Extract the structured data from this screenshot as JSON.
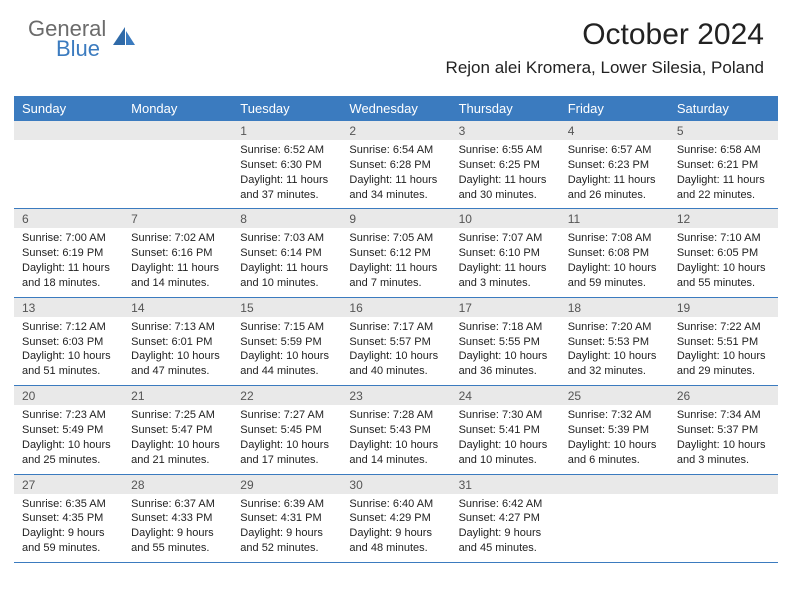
{
  "logo": {
    "text1": "General",
    "text2": "Blue"
  },
  "title": "October 2024",
  "location": "Rejon alei Kromera, Lower Silesia, Poland",
  "colors": {
    "header_bg": "#3b7bbf",
    "header_text": "#ffffff",
    "daynum_bg": "#e9e9e9",
    "daynum_text": "#555555",
    "body_text": "#222222",
    "logo_gray": "#6b6b6b",
    "logo_blue": "#3b7bbf",
    "border": "#3b7bbf",
    "page_bg": "#ffffff"
  },
  "day_labels": [
    "Sunday",
    "Monday",
    "Tuesday",
    "Wednesday",
    "Thursday",
    "Friday",
    "Saturday"
  ],
  "weeks": [
    [
      {
        "n": "",
        "sr": "",
        "ss": "",
        "dl": ""
      },
      {
        "n": "",
        "sr": "",
        "ss": "",
        "dl": ""
      },
      {
        "n": "1",
        "sr": "Sunrise: 6:52 AM",
        "ss": "Sunset: 6:30 PM",
        "dl": "Daylight: 11 hours and 37 minutes."
      },
      {
        "n": "2",
        "sr": "Sunrise: 6:54 AM",
        "ss": "Sunset: 6:28 PM",
        "dl": "Daylight: 11 hours and 34 minutes."
      },
      {
        "n": "3",
        "sr": "Sunrise: 6:55 AM",
        "ss": "Sunset: 6:25 PM",
        "dl": "Daylight: 11 hours and 30 minutes."
      },
      {
        "n": "4",
        "sr": "Sunrise: 6:57 AM",
        "ss": "Sunset: 6:23 PM",
        "dl": "Daylight: 11 hours and 26 minutes."
      },
      {
        "n": "5",
        "sr": "Sunrise: 6:58 AM",
        "ss": "Sunset: 6:21 PM",
        "dl": "Daylight: 11 hours and 22 minutes."
      }
    ],
    [
      {
        "n": "6",
        "sr": "Sunrise: 7:00 AM",
        "ss": "Sunset: 6:19 PM",
        "dl": "Daylight: 11 hours and 18 minutes."
      },
      {
        "n": "7",
        "sr": "Sunrise: 7:02 AM",
        "ss": "Sunset: 6:16 PM",
        "dl": "Daylight: 11 hours and 14 minutes."
      },
      {
        "n": "8",
        "sr": "Sunrise: 7:03 AM",
        "ss": "Sunset: 6:14 PM",
        "dl": "Daylight: 11 hours and 10 minutes."
      },
      {
        "n": "9",
        "sr": "Sunrise: 7:05 AM",
        "ss": "Sunset: 6:12 PM",
        "dl": "Daylight: 11 hours and 7 minutes."
      },
      {
        "n": "10",
        "sr": "Sunrise: 7:07 AM",
        "ss": "Sunset: 6:10 PM",
        "dl": "Daylight: 11 hours and 3 minutes."
      },
      {
        "n": "11",
        "sr": "Sunrise: 7:08 AM",
        "ss": "Sunset: 6:08 PM",
        "dl": "Daylight: 10 hours and 59 minutes."
      },
      {
        "n": "12",
        "sr": "Sunrise: 7:10 AM",
        "ss": "Sunset: 6:05 PM",
        "dl": "Daylight: 10 hours and 55 minutes."
      }
    ],
    [
      {
        "n": "13",
        "sr": "Sunrise: 7:12 AM",
        "ss": "Sunset: 6:03 PM",
        "dl": "Daylight: 10 hours and 51 minutes."
      },
      {
        "n": "14",
        "sr": "Sunrise: 7:13 AM",
        "ss": "Sunset: 6:01 PM",
        "dl": "Daylight: 10 hours and 47 minutes."
      },
      {
        "n": "15",
        "sr": "Sunrise: 7:15 AM",
        "ss": "Sunset: 5:59 PM",
        "dl": "Daylight: 10 hours and 44 minutes."
      },
      {
        "n": "16",
        "sr": "Sunrise: 7:17 AM",
        "ss": "Sunset: 5:57 PM",
        "dl": "Daylight: 10 hours and 40 minutes."
      },
      {
        "n": "17",
        "sr": "Sunrise: 7:18 AM",
        "ss": "Sunset: 5:55 PM",
        "dl": "Daylight: 10 hours and 36 minutes."
      },
      {
        "n": "18",
        "sr": "Sunrise: 7:20 AM",
        "ss": "Sunset: 5:53 PM",
        "dl": "Daylight: 10 hours and 32 minutes."
      },
      {
        "n": "19",
        "sr": "Sunrise: 7:22 AM",
        "ss": "Sunset: 5:51 PM",
        "dl": "Daylight: 10 hours and 29 minutes."
      }
    ],
    [
      {
        "n": "20",
        "sr": "Sunrise: 7:23 AM",
        "ss": "Sunset: 5:49 PM",
        "dl": "Daylight: 10 hours and 25 minutes."
      },
      {
        "n": "21",
        "sr": "Sunrise: 7:25 AM",
        "ss": "Sunset: 5:47 PM",
        "dl": "Daylight: 10 hours and 21 minutes."
      },
      {
        "n": "22",
        "sr": "Sunrise: 7:27 AM",
        "ss": "Sunset: 5:45 PM",
        "dl": "Daylight: 10 hours and 17 minutes."
      },
      {
        "n": "23",
        "sr": "Sunrise: 7:28 AM",
        "ss": "Sunset: 5:43 PM",
        "dl": "Daylight: 10 hours and 14 minutes."
      },
      {
        "n": "24",
        "sr": "Sunrise: 7:30 AM",
        "ss": "Sunset: 5:41 PM",
        "dl": "Daylight: 10 hours and 10 minutes."
      },
      {
        "n": "25",
        "sr": "Sunrise: 7:32 AM",
        "ss": "Sunset: 5:39 PM",
        "dl": "Daylight: 10 hours and 6 minutes."
      },
      {
        "n": "26",
        "sr": "Sunrise: 7:34 AM",
        "ss": "Sunset: 5:37 PM",
        "dl": "Daylight: 10 hours and 3 minutes."
      }
    ],
    [
      {
        "n": "27",
        "sr": "Sunrise: 6:35 AM",
        "ss": "Sunset: 4:35 PM",
        "dl": "Daylight: 9 hours and 59 minutes."
      },
      {
        "n": "28",
        "sr": "Sunrise: 6:37 AM",
        "ss": "Sunset: 4:33 PM",
        "dl": "Daylight: 9 hours and 55 minutes."
      },
      {
        "n": "29",
        "sr": "Sunrise: 6:39 AM",
        "ss": "Sunset: 4:31 PM",
        "dl": "Daylight: 9 hours and 52 minutes."
      },
      {
        "n": "30",
        "sr": "Sunrise: 6:40 AM",
        "ss": "Sunset: 4:29 PM",
        "dl": "Daylight: 9 hours and 48 minutes."
      },
      {
        "n": "31",
        "sr": "Sunrise: 6:42 AM",
        "ss": "Sunset: 4:27 PM",
        "dl": "Daylight: 9 hours and 45 minutes."
      },
      {
        "n": "",
        "sr": "",
        "ss": "",
        "dl": ""
      },
      {
        "n": "",
        "sr": "",
        "ss": "",
        "dl": ""
      }
    ]
  ]
}
